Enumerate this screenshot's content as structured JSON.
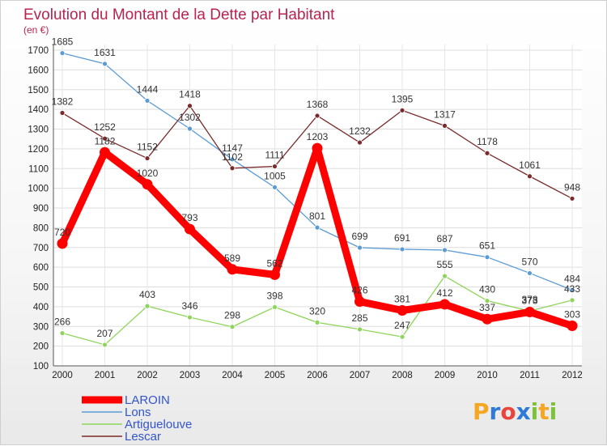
{
  "header": {
    "title": "Evolution du Montant de la Dette par Habitant",
    "subtitle": "(en €)"
  },
  "logo": {
    "text": "Proxiti",
    "letter_colors": [
      "#f5a623",
      "#2f7ad8",
      "#e8453c",
      "#2f7ad8",
      "#7dc23b",
      "#f5a623",
      "#7dc23b"
    ]
  },
  "chart_data": {
    "type": "line",
    "x": [
      "2000",
      "2001",
      "2002",
      "2003",
      "2004",
      "2005",
      "2006",
      "2007",
      "2008",
      "2009",
      "2010",
      "2011",
      "2012"
    ],
    "ylim": [
      100,
      1700
    ],
    "yticks": [
      100,
      200,
      300,
      400,
      500,
      600,
      700,
      800,
      900,
      1000,
      1100,
      1200,
      1300,
      1400,
      1500,
      1600,
      1700
    ],
    "grid": true,
    "legend_position": "bottom-left",
    "series": [
      {
        "name": "LAROIN",
        "color": "#ff0000",
        "emphasis": true,
        "values": [
          720,
          1182,
          1020,
          793,
          589,
          562,
          1203,
          426,
          381,
          412,
          337,
          373,
          303
        ]
      },
      {
        "name": "Lons",
        "color": "#5b9bd5",
        "emphasis": false,
        "values": [
          1685,
          1631,
          1444,
          1302,
          1147,
          1005,
          801,
          699,
          691,
          687,
          651,
          570,
          484
        ]
      },
      {
        "name": "Artiguelouve",
        "color": "#8fd45a",
        "emphasis": false,
        "values": [
          266,
          207,
          403,
          346,
          298,
          398,
          320,
          285,
          247,
          555,
          430,
          378,
          433
        ]
      },
      {
        "name": "Lescar",
        "color": "#7a2a2a",
        "emphasis": false,
        "values": [
          1382,
          1252,
          1152,
          1418,
          1102,
          1111,
          1368,
          1232,
          1395,
          1317,
          1178,
          1061,
          948
        ]
      }
    ]
  }
}
